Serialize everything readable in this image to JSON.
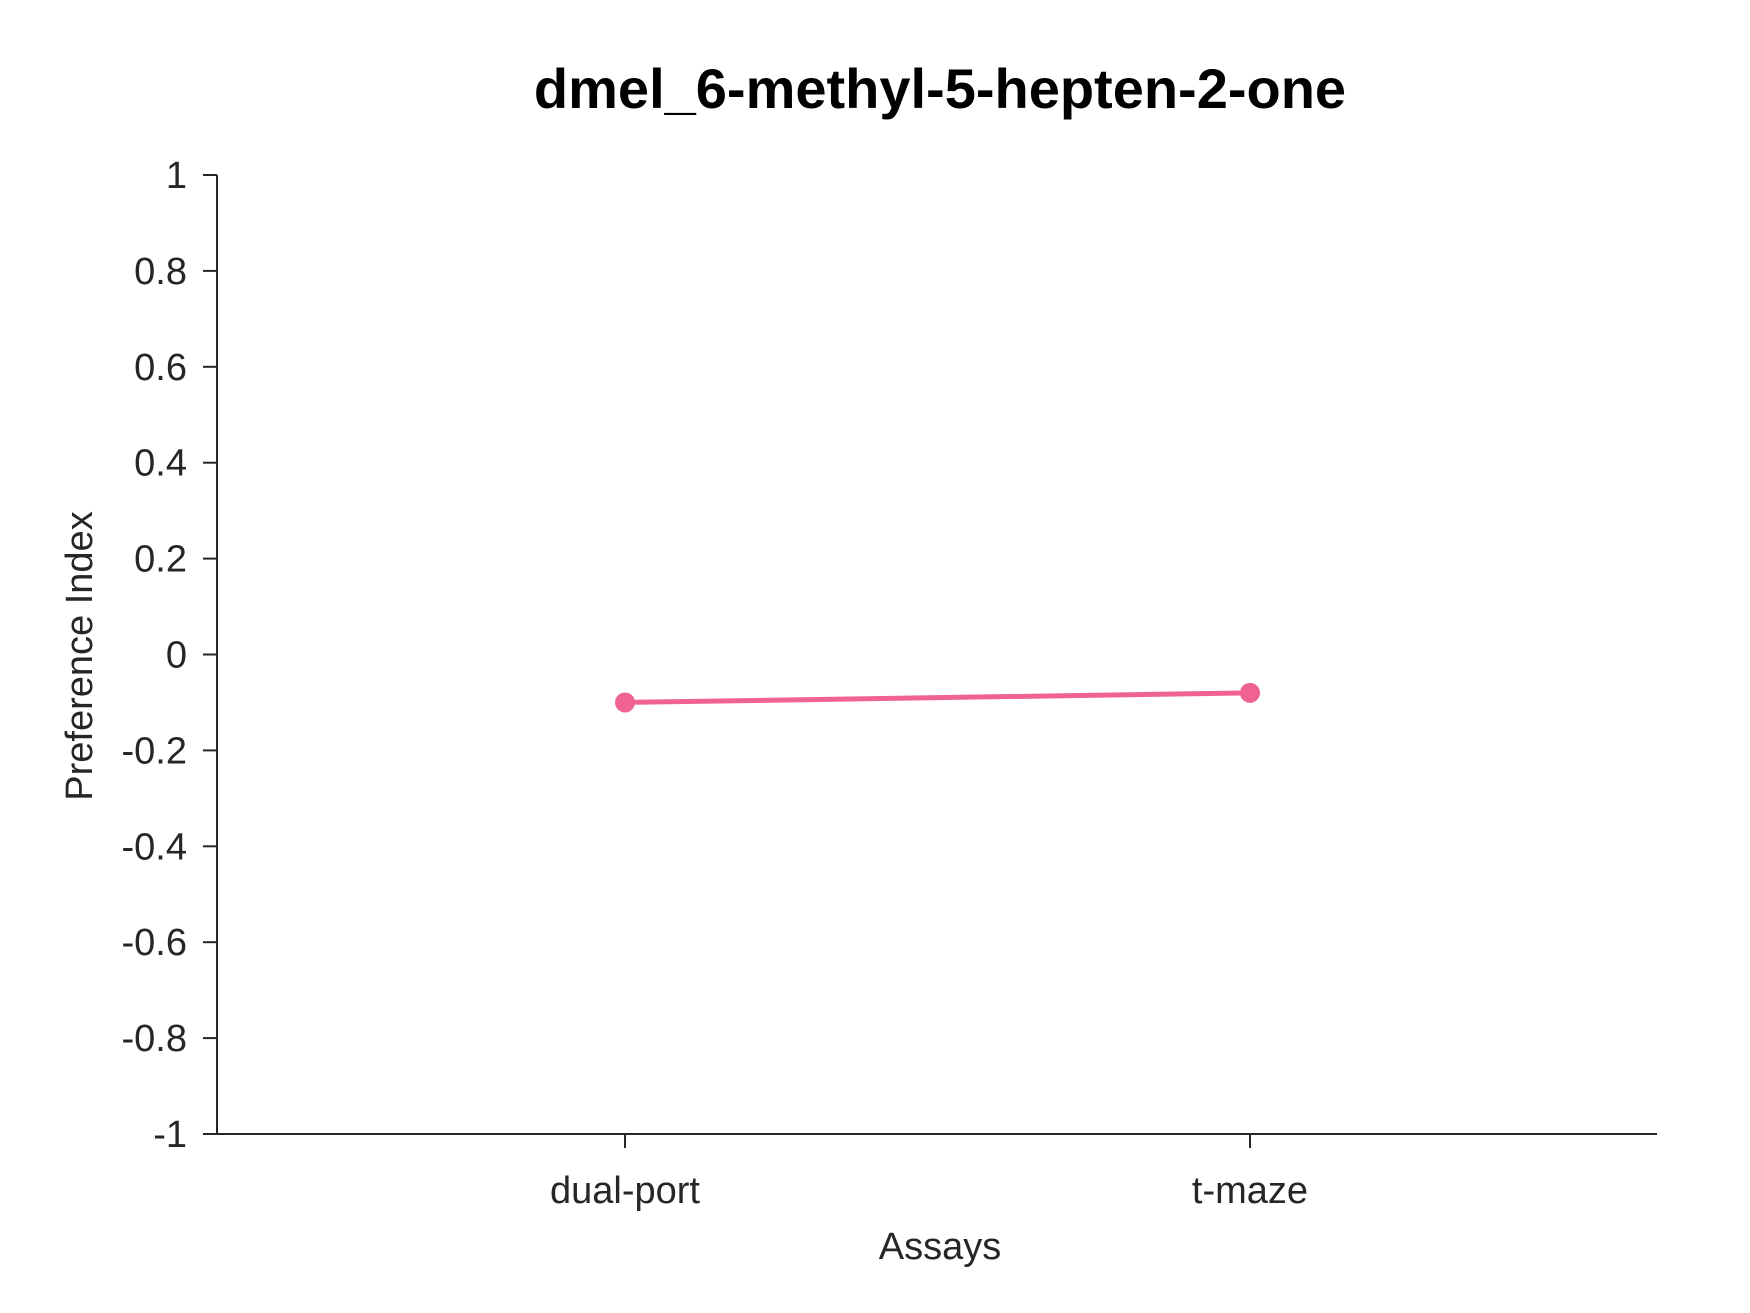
{
  "chart_data": {
    "type": "line",
    "title": "dmel_6-methyl-5-hepten-2-one",
    "xlabel": "Assays",
    "ylabel": "Preference Index",
    "categories": [
      "dual-port",
      "t-maze"
    ],
    "series": [
      {
        "values": [
          -0.1,
          -0.08
        ],
        "color": "#f06292"
      }
    ],
    "ylim": [
      -1,
      1
    ],
    "yticks": [
      1,
      0.8,
      0.6,
      0.4,
      0.2,
      0,
      -0.2,
      -0.4,
      -0.6,
      -0.8,
      -1
    ],
    "ytick_labels": [
      "1",
      "0.8",
      "0.6",
      "0.4",
      "0.2",
      "0",
      "-0.2",
      "-0.4",
      "-0.6",
      "-0.8",
      "-1"
    ],
    "grid": false,
    "legend": "none"
  }
}
